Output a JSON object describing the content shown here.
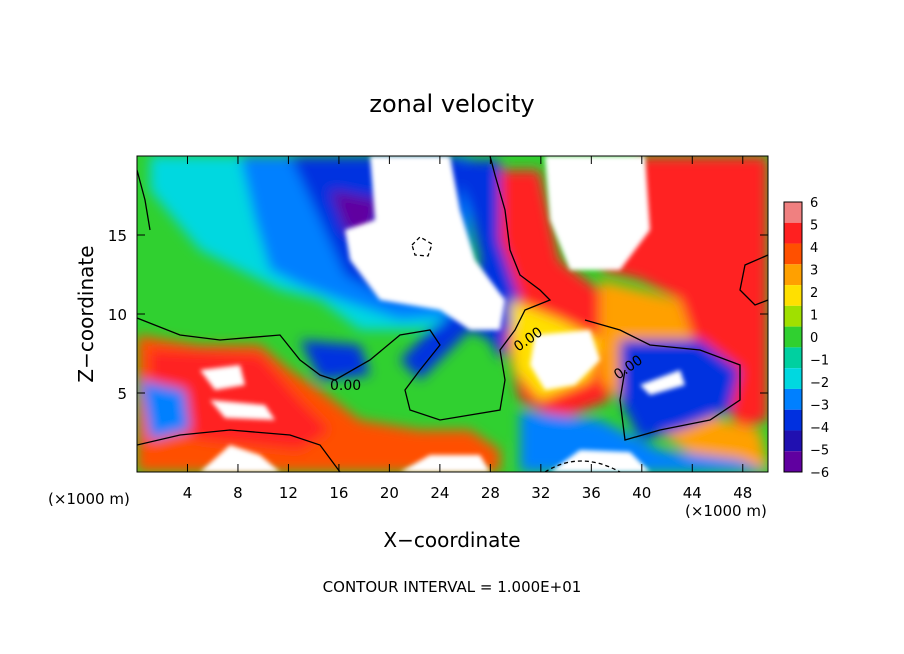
{
  "chart_data": {
    "type": "heatmap",
    "title": "zonal velocity",
    "xlabel": "X−coordinate",
    "ylabel": "Z−coordinate",
    "xunit_left": "(×1000 m)",
    "xunit_right": "(×1000 m)",
    "xlim": [
      0,
      50
    ],
    "ylim": [
      0,
      20
    ],
    "xticks": [
      4,
      8,
      12,
      16,
      20,
      24,
      28,
      32,
      36,
      40,
      44,
      48
    ],
    "yticks": [
      5,
      10,
      15
    ],
    "colorbar": {
      "levels": [
        6,
        5,
        4,
        3,
        2,
        1,
        0,
        -1,
        -2,
        -3,
        -4,
        -5,
        -6
      ],
      "level_labels": [
        "6",
        "5",
        "4",
        "3",
        "2",
        "1",
        "0",
        "−1",
        "−2",
        "−3",
        "−4",
        "−5",
        "−6"
      ],
      "colors": [
        "#f08080",
        "#ff2020",
        "#ff5000",
        "#ffa000",
        "#ffe000",
        "#a0e000",
        "#30d030",
        "#00d0a0",
        "#00d8e0",
        "#0080ff",
        "#0030e0",
        "#2010b0",
        "#6000a0"
      ]
    },
    "contour_labels": [
      "0.00",
      "0.00",
      "0.00"
    ],
    "footer": "CONTOUR INTERVAL = 1.000E+01"
  }
}
